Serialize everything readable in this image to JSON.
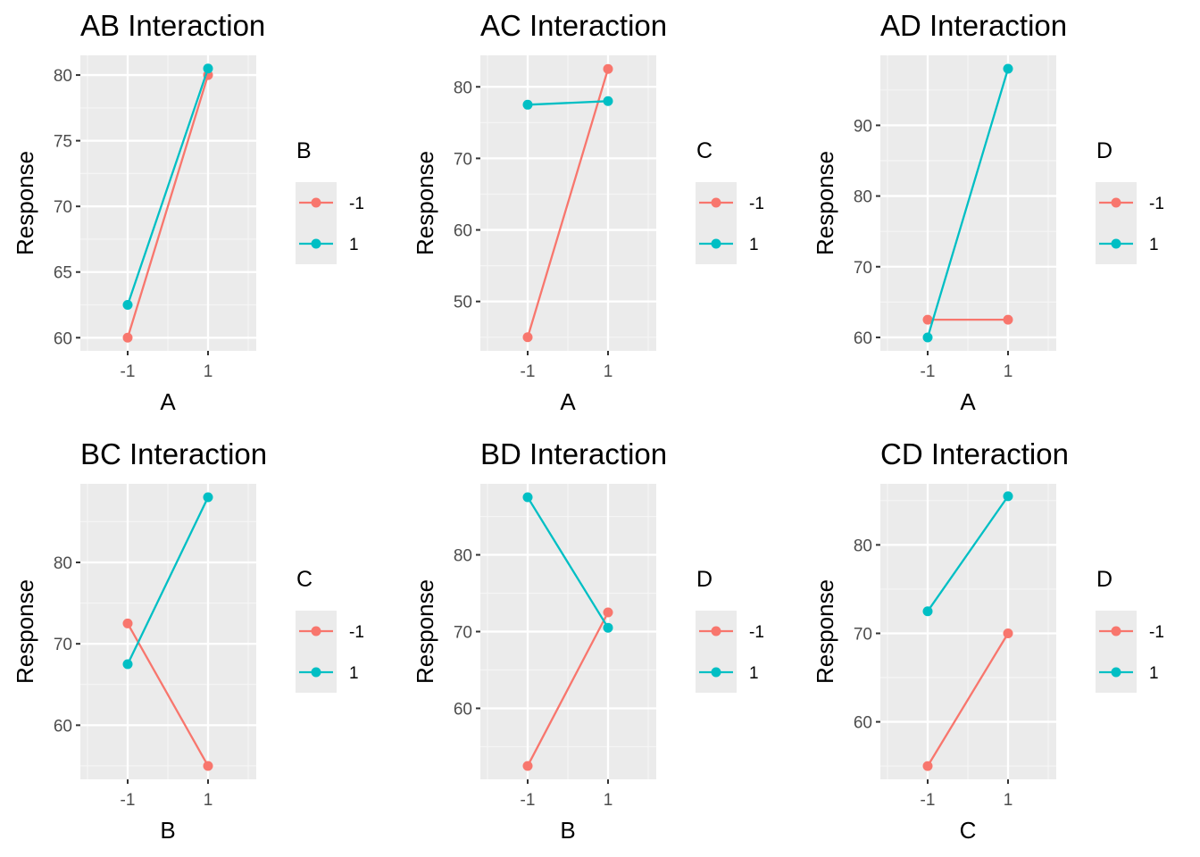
{
  "colors": {
    "panel_background": "#ebebeb",
    "grid_major": "#ffffff",
    "grid_minor": "#f5f5f5",
    "tick_text": "#4d4d4d",
    "series_neg": "#F8766D",
    "series_pos": "#00BFC4"
  },
  "chart_data": [
    {
      "type": "line",
      "title": "AB Interaction",
      "xlabel": "A",
      "ylabel": "Response",
      "categories": [
        "-1",
        "1"
      ],
      "legend_title": "B",
      "legend_position": "right",
      "ylim": [
        59.0,
        81.5
      ],
      "yticks": [
        60,
        65,
        70,
        75,
        80
      ],
      "grid": true,
      "series": [
        {
          "name": "-1",
          "color": "#F8766D",
          "values": [
            60,
            80
          ]
        },
        {
          "name": "1",
          "color": "#00BFC4",
          "values": [
            62.5,
            80.5
          ]
        }
      ]
    },
    {
      "type": "line",
      "title": "AC Interaction",
      "xlabel": "A",
      "ylabel": "Response",
      "categories": [
        "-1",
        "1"
      ],
      "legend_title": "C",
      "legend_position": "right",
      "ylim": [
        43.1,
        84.4
      ],
      "yticks": [
        50,
        60,
        70,
        80
      ],
      "grid": true,
      "series": [
        {
          "name": "-1",
          "color": "#F8766D",
          "values": [
            45,
            82.5
          ]
        },
        {
          "name": "1",
          "color": "#00BFC4",
          "values": [
            77.5,
            78
          ]
        }
      ]
    },
    {
      "type": "line",
      "title": "AD Interaction",
      "xlabel": "A",
      "ylabel": "Response",
      "categories": [
        "-1",
        "1"
      ],
      "legend_title": "D",
      "legend_position": "right",
      "ylim": [
        58.1,
        99.9
      ],
      "yticks": [
        60,
        70,
        80,
        90
      ],
      "grid": true,
      "series": [
        {
          "name": "-1",
          "color": "#F8766D",
          "values": [
            62.5,
            62.5
          ]
        },
        {
          "name": "1",
          "color": "#00BFC4",
          "values": [
            60,
            98
          ]
        }
      ]
    },
    {
      "type": "line",
      "title": "BC Interaction",
      "xlabel": "B",
      "ylabel": "Response",
      "categories": [
        "-1",
        "1"
      ],
      "legend_title": "C",
      "legend_position": "right",
      "ylim": [
        53.35,
        89.65
      ],
      "yticks": [
        60,
        70,
        80
      ],
      "grid": true,
      "series": [
        {
          "name": "-1",
          "color": "#F8766D",
          "values": [
            72.5,
            55
          ]
        },
        {
          "name": "1",
          "color": "#00BFC4",
          "values": [
            67.5,
            88
          ]
        }
      ]
    },
    {
      "type": "line",
      "title": "BD Interaction",
      "xlabel": "B",
      "ylabel": "Response",
      "categories": [
        "-1",
        "1"
      ],
      "legend_title": "D",
      "legend_position": "right",
      "ylim": [
        50.75,
        89.25
      ],
      "yticks": [
        60,
        70,
        80
      ],
      "grid": true,
      "series": [
        {
          "name": "-1",
          "color": "#F8766D",
          "values": [
            52.5,
            72.5
          ]
        },
        {
          "name": "1",
          "color": "#00BFC4",
          "values": [
            87.5,
            70.5
          ]
        }
      ]
    },
    {
      "type": "line",
      "title": "CD Interaction",
      "xlabel": "C",
      "ylabel": "Response",
      "categories": [
        "-1",
        "1"
      ],
      "legend_title": "D",
      "legend_position": "right",
      "ylim": [
        53.5,
        86.9
      ],
      "yticks": [
        60,
        70,
        80
      ],
      "grid": true,
      "series": [
        {
          "name": "-1",
          "color": "#F8766D",
          "values": [
            55,
            70
          ]
        },
        {
          "name": "1",
          "color": "#00BFC4",
          "values": [
            72.5,
            85.5
          ]
        }
      ]
    }
  ]
}
